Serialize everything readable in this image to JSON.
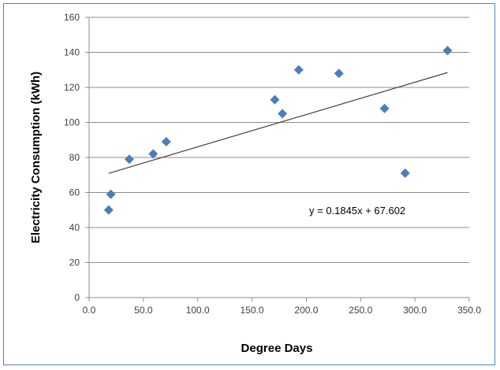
{
  "chart_data": {
    "type": "scatter",
    "xlabel": "Degree Days",
    "ylabel": "Electricity Consumption (kWh)",
    "xlim": [
      0,
      350
    ],
    "ylim": [
      0,
      160
    ],
    "x_ticks": [
      "0.0",
      "50.0",
      "100.0",
      "150.0",
      "200.0",
      "250.0",
      "300.0",
      "350.0"
    ],
    "y_ticks": [
      "0",
      "20",
      "40",
      "60",
      "80",
      "100",
      "120",
      "140",
      "160"
    ],
    "grid": "horizontal",
    "marker_color": "#4a7ebb",
    "trendline": {
      "equation": "y = 0.1845x + 67.602",
      "slope": 0.1845,
      "intercept": 67.602,
      "x_range": [
        18,
        330
      ]
    },
    "points": [
      {
        "x": 18,
        "y": 50
      },
      {
        "x": 20,
        "y": 59
      },
      {
        "x": 37,
        "y": 79
      },
      {
        "x": 59,
        "y": 82
      },
      {
        "x": 71,
        "y": 89
      },
      {
        "x": 171,
        "y": 113
      },
      {
        "x": 178,
        "y": 105
      },
      {
        "x": 193,
        "y": 130
      },
      {
        "x": 230,
        "y": 128
      },
      {
        "x": 272,
        "y": 108
      },
      {
        "x": 291,
        "y": 71
      },
      {
        "x": 330,
        "y": 141
      }
    ]
  }
}
